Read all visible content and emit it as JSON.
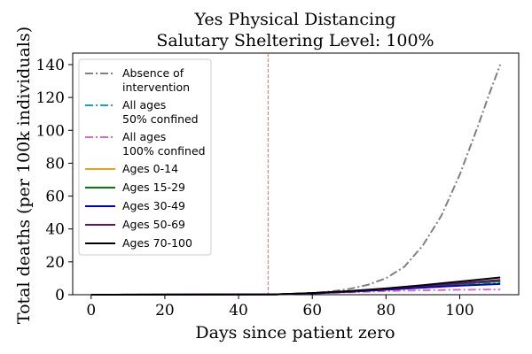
{
  "chart_data": {
    "type": "line",
    "title": [
      "Yes Physical Distancing",
      "Salutary Sheltering Level: 100%"
    ],
    "xlabel": "Days since patient zero",
    "ylabel": "Total deaths (per 100k individuals)",
    "xlim": [
      -5,
      116
    ],
    "ylim": [
      0,
      147
    ],
    "xticks": [
      0,
      20,
      40,
      60,
      80,
      100
    ],
    "yticks": [
      0,
      20,
      40,
      60,
      80,
      100,
      120,
      140
    ],
    "vline": {
      "x": 48,
      "color": "#e06666",
      "style": "dashed"
    },
    "legend_position": "upper left",
    "grid": false,
    "series": [
      {
        "name": "Absence of intervention",
        "legend_lines": [
          "Absence of",
          "intervention"
        ],
        "color": "#808080",
        "style": "dashdot",
        "x": [
          0,
          40,
          50,
          55,
          60,
          65,
          70,
          75,
          80,
          85,
          90,
          95,
          100,
          105,
          108,
          111
        ],
        "y": [
          0,
          0,
          0.2,
          0.5,
          1.0,
          2.0,
          3.5,
          6,
          10,
          17,
          30,
          48,
          73,
          103,
          122,
          140
        ]
      },
      {
        "name": "All ages 50% confined",
        "legend_lines": [
          "All ages",
          "50% confined"
        ],
        "color": "#1f9ccc",
        "style": "dashdot",
        "x": [
          0,
          50,
          60,
          70,
          80,
          90,
          100,
          111
        ],
        "y": [
          0,
          0.2,
          0.8,
          1.8,
          3.0,
          4.5,
          6.0,
          7.5
        ]
      },
      {
        "name": "All ages 100% confined",
        "legend_lines": [
          "All ages",
          "100% confined"
        ],
        "color": "#e066cc",
        "style": "dashdot",
        "x": [
          0,
          50,
          60,
          70,
          80,
          90,
          100,
          111
        ],
        "y": [
          0,
          0.2,
          0.8,
          1.5,
          2.2,
          2.7,
          3.0,
          3.2
        ]
      },
      {
        "name": "Ages 0-14",
        "legend_lines": [
          "Ages 0-14"
        ],
        "color": "#e8a317",
        "style": "solid",
        "x": [
          0,
          50,
          60,
          70,
          80,
          90,
          100,
          111
        ],
        "y": [
          0,
          0.2,
          0.9,
          2.0,
          3.3,
          5.0,
          6.7,
          8.3
        ]
      },
      {
        "name": "Ages 15-29",
        "legend_lines": [
          "Ages 15-29"
        ],
        "color": "#008000",
        "style": "solid",
        "x": [
          0,
          50,
          60,
          70,
          80,
          90,
          100,
          111
        ],
        "y": [
          0,
          0.2,
          0.9,
          2.0,
          3.3,
          5.0,
          6.6,
          8.2
        ]
      },
      {
        "name": "Ages 30-49",
        "legend_lines": [
          "Ages 30-49"
        ],
        "color": "#0000cc",
        "style": "solid",
        "x": [
          0,
          50,
          60,
          70,
          80,
          90,
          100,
          111
        ],
        "y": [
          0,
          0.2,
          0.8,
          1.8,
          3.0,
          4.3,
          5.5,
          6.5
        ]
      },
      {
        "name": "Ages 50-69",
        "legend_lines": [
          "Ages 50-69"
        ],
        "color": "#6a0d6a",
        "style": "solid",
        "x": [
          0,
          50,
          60,
          70,
          80,
          90,
          100,
          111
        ],
        "y": [
          0,
          0.2,
          0.9,
          2.0,
          3.5,
          5.2,
          7.0,
          9.0
        ]
      },
      {
        "name": "Ages 70-100",
        "legend_lines": [
          "Ages 70-100"
        ],
        "color": "#000000",
        "style": "solid",
        "x": [
          0,
          50,
          60,
          70,
          80,
          90,
          100,
          111
        ],
        "y": [
          0,
          0.2,
          1.0,
          2.2,
          3.8,
          5.8,
          8.0,
          10.5
        ]
      }
    ]
  }
}
